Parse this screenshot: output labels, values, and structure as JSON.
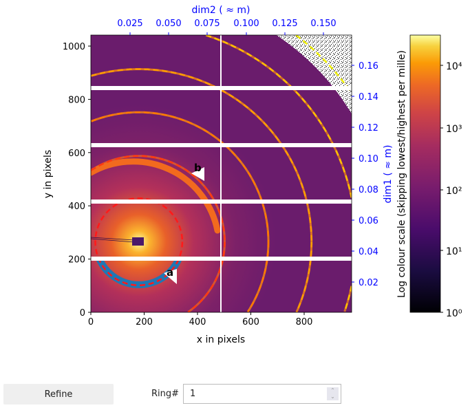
{
  "plot": {
    "xlabel": "x in pixels",
    "ylabel": "y in pixels",
    "top_label": "dim2 ( ≈ m)",
    "right_label": "dim1 ( ≈ m)",
    "x_ticks": [
      "0",
      "200",
      "400",
      "600",
      "800"
    ],
    "y_ticks": [
      "0",
      "200",
      "400",
      "600",
      "800",
      "1000"
    ],
    "top_ticks": [
      "0.025",
      "0.050",
      "0.075",
      "0.100",
      "0.125",
      "0.150"
    ],
    "right_ticks": [
      "0.02",
      "0.04",
      "0.06",
      "0.08",
      "0.10",
      "0.12",
      "0.14",
      "0.16"
    ],
    "colorbar_label": "Log colour scale (skipping lowest/highest per mille)",
    "colorbar_ticks": [
      "10⁴",
      "10³",
      "10²",
      "10¹",
      "10⁰"
    ],
    "colormap": "inferno",
    "axis_color_secondary": "#0000ff",
    "markers": [
      "a",
      "b"
    ]
  },
  "controls": {
    "refine_label": "Refine",
    "ring_label": "Ring#",
    "ring_value": "1"
  }
}
